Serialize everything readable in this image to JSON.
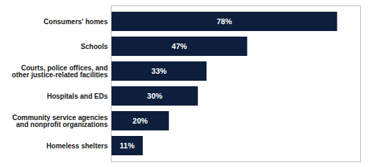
{
  "chart_data": {
    "type": "bar",
    "orientation": "horizontal",
    "categories": [
      "Homeless shelters",
      "Community service agencies\nand nonprofit organizations",
      "Hospitals and EDs",
      "Courts, police offices, and\nother justice-related facilities",
      "Schools",
      "Consumers' homes"
    ],
    "values": [
      11,
      20,
      30,
      33,
      47,
      78
    ],
    "value_labels": [
      "11%",
      "20%",
      "30%",
      "33%",
      "47%",
      "78%"
    ],
    "color": "#0d1f3c",
    "xlim": [
      0,
      86
    ],
    "grid": false,
    "data_labels": true,
    "tick_labels": "y"
  }
}
